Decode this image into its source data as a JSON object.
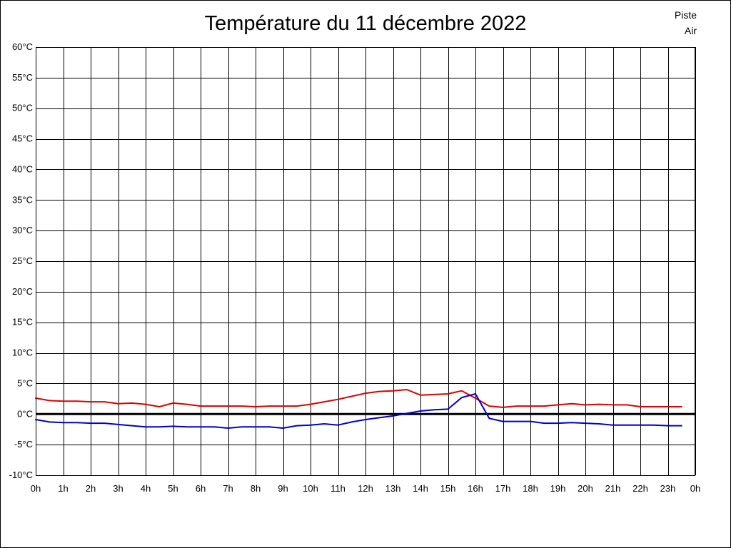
{
  "chart_data": {
    "type": "line",
    "title": "Température du 11 décembre 2022",
    "ylim": [
      -10,
      60
    ],
    "xlim": [
      0,
      24
    ],
    "grid": true,
    "legend_placement": "top-right",
    "y_ticks": [
      -10,
      -5,
      0,
      5,
      10,
      15,
      20,
      25,
      30,
      35,
      40,
      45,
      50,
      55,
      60
    ],
    "y_tick_labels": [
      "-10°C",
      "-5°C",
      "0°C",
      "5°C",
      "10°C",
      "15°C",
      "20°C",
      "25°C",
      "30°C",
      "35°C",
      "40°C",
      "45°C",
      "50°C",
      "55°C",
      "60°C"
    ],
    "x_ticks": [
      0,
      1,
      2,
      3,
      4,
      5,
      6,
      7,
      8,
      9,
      10,
      11,
      12,
      13,
      14,
      15,
      16,
      17,
      18,
      19,
      20,
      21,
      22,
      23,
      24
    ],
    "x_tick_labels": [
      "0h",
      "1h",
      "2h",
      "3h",
      "4h",
      "5h",
      "6h",
      "7h",
      "8h",
      "9h",
      "10h",
      "11h",
      "12h",
      "13h",
      "14h",
      "15h",
      "16h",
      "17h",
      "18h",
      "19h",
      "20h",
      "21h",
      "22h",
      "23h",
      "0h"
    ],
    "series": [
      {
        "name": "Piste",
        "color": "#dd0000",
        "points": [
          [
            0,
            2.6
          ],
          [
            0.5,
            2.2
          ],
          [
            1,
            2.1
          ],
          [
            1.5,
            2.1
          ],
          [
            2,
            2.0
          ],
          [
            2.5,
            2.0
          ],
          [
            3,
            1.7
          ],
          [
            3.5,
            1.8
          ],
          [
            4,
            1.6
          ],
          [
            4.5,
            1.2
          ],
          [
            5,
            1.8
          ],
          [
            5.5,
            1.6
          ],
          [
            6,
            1.3
          ],
          [
            6.5,
            1.3
          ],
          [
            7,
            1.3
          ],
          [
            7.5,
            1.3
          ],
          [
            8,
            1.2
          ],
          [
            8.5,
            1.3
          ],
          [
            9,
            1.3
          ],
          [
            9.5,
            1.3
          ],
          [
            10,
            1.6
          ],
          [
            10.5,
            2.0
          ],
          [
            11,
            2.4
          ],
          [
            11.5,
            2.9
          ],
          [
            12,
            3.4
          ],
          [
            12.5,
            3.7
          ],
          [
            13,
            3.8
          ],
          [
            13.5,
            4.0
          ],
          [
            14,
            3.1
          ],
          [
            14.5,
            3.2
          ],
          [
            15,
            3.3
          ],
          [
            15.5,
            3.8
          ],
          [
            16,
            2.6
          ],
          [
            16.5,
            1.3
          ],
          [
            17,
            1.1
          ],
          [
            17.5,
            1.3
          ],
          [
            18,
            1.3
          ],
          [
            18.5,
            1.3
          ],
          [
            19,
            1.5
          ],
          [
            19.5,
            1.7
          ],
          [
            20,
            1.5
          ],
          [
            20.5,
            1.6
          ],
          [
            21,
            1.5
          ],
          [
            21.5,
            1.5
          ],
          [
            22,
            1.2
          ],
          [
            22.5,
            1.2
          ],
          [
            23,
            1.2
          ],
          [
            23.5,
            1.2
          ]
        ]
      },
      {
        "name": "Air",
        "color": "#0000cc",
        "points": [
          [
            0,
            -0.9
          ],
          [
            0.5,
            -1.3
          ],
          [
            1,
            -1.4
          ],
          [
            1.5,
            -1.4
          ],
          [
            2,
            -1.5
          ],
          [
            2.5,
            -1.5
          ],
          [
            3,
            -1.7
          ],
          [
            3.5,
            -1.9
          ],
          [
            4,
            -2.1
          ],
          [
            4.5,
            -2.1
          ],
          [
            5,
            -2.0
          ],
          [
            5.5,
            -2.1
          ],
          [
            6,
            -2.1
          ],
          [
            6.5,
            -2.1
          ],
          [
            7,
            -2.3
          ],
          [
            7.5,
            -2.1
          ],
          [
            8,
            -2.1
          ],
          [
            8.5,
            -2.1
          ],
          [
            9,
            -2.3
          ],
          [
            9.5,
            -1.9
          ],
          [
            10,
            -1.8
          ],
          [
            10.5,
            -1.6
          ],
          [
            11,
            -1.8
          ],
          [
            11.5,
            -1.3
          ],
          [
            12,
            -0.9
          ],
          [
            12.5,
            -0.6
          ],
          [
            13,
            -0.3
          ],
          [
            13.5,
            0.1
          ],
          [
            14,
            0.5
          ],
          [
            14.5,
            0.7
          ],
          [
            15,
            0.8
          ],
          [
            15.5,
            2.7
          ],
          [
            16,
            3.3
          ],
          [
            16.5,
            -0.7
          ],
          [
            17,
            -1.2
          ],
          [
            17.5,
            -1.2
          ],
          [
            18,
            -1.2
          ],
          [
            18.5,
            -1.5
          ],
          [
            19,
            -1.5
          ],
          [
            19.5,
            -1.4
          ],
          [
            20,
            -1.5
          ],
          [
            20.5,
            -1.6
          ],
          [
            21,
            -1.8
          ],
          [
            21.5,
            -1.8
          ],
          [
            22,
            -1.8
          ],
          [
            22.5,
            -1.8
          ],
          [
            23,
            -1.9
          ],
          [
            23.5,
            -1.9
          ]
        ]
      }
    ]
  }
}
